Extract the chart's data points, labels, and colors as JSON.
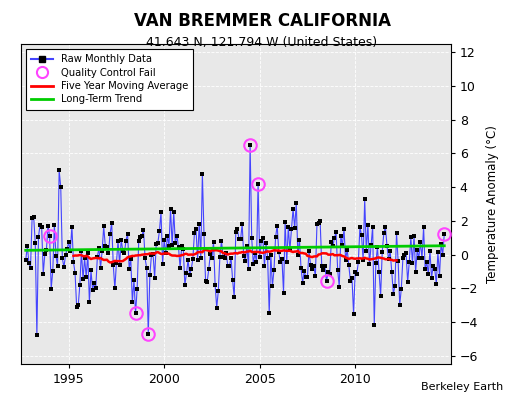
{
  "title": "VAN BREMMER CALIFORNIA",
  "subtitle": "41.643 N, 121.794 W (United States)",
  "ylabel": "Temperature Anomaly (°C)",
  "credit": "Berkeley Earth",
  "ylim": [
    -6.5,
    12.5
  ],
  "yticks": [
    -6,
    -4,
    -2,
    0,
    2,
    4,
    6,
    8,
    10,
    12
  ],
  "xlim": [
    1992.5,
    2015.0
  ],
  "xticks": [
    1995,
    2000,
    2005,
    2010
  ],
  "outer_bg": "#ffffff",
  "plot_bg_color": "#e8e8e8",
  "raw_line_color": "#4444ff",
  "raw_dot_color": "#000000",
  "ma_color": "#ff0000",
  "trend_color": "#00cc00",
  "qc_color": "#ff44ff",
  "grid_color": "#ffffff",
  "seed": 12345,
  "n_months": 264,
  "start_year": 1992.75
}
